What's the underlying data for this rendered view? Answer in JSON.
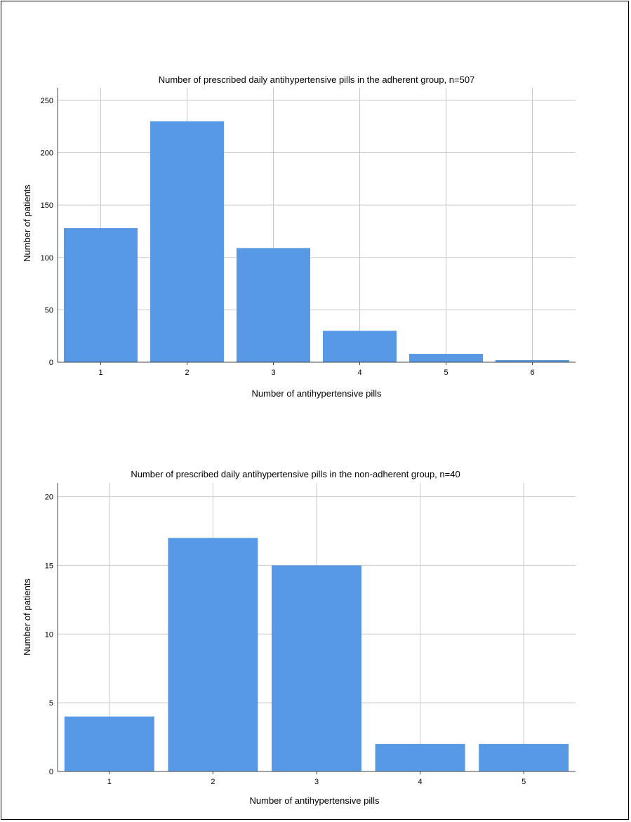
{
  "chart_data": [
    {
      "type": "bar",
      "title": "Number of prescribed daily antihypertensive pills in the adherent group, n=507",
      "xlabel": "Number of antihypertensive pills",
      "ylabel": "Number of patients",
      "categories": [
        "1",
        "2",
        "3",
        "4",
        "5",
        "6"
      ],
      "values": [
        128,
        230,
        109,
        30,
        8,
        2
      ],
      "yticks": [
        "0",
        "50",
        "100",
        "150",
        "200",
        "250"
      ],
      "ylim": [
        0,
        262
      ],
      "grid": true,
      "bar_color": "#5799E5"
    },
    {
      "type": "bar",
      "title": "Number of prescribed daily antihypertensive pills in the non-adherent group, n=40",
      "xlabel": "Number of antihypertensive pills",
      "ylabel": "Number of patients",
      "categories": [
        "1",
        "2",
        "3",
        "4",
        "5"
      ],
      "values": [
        4,
        17,
        15,
        2,
        2
      ],
      "yticks": [
        "0",
        "5",
        "10",
        "15",
        "20"
      ],
      "ylim": [
        0,
        21
      ],
      "grid": true,
      "bar_color": "#5799E5"
    }
  ]
}
